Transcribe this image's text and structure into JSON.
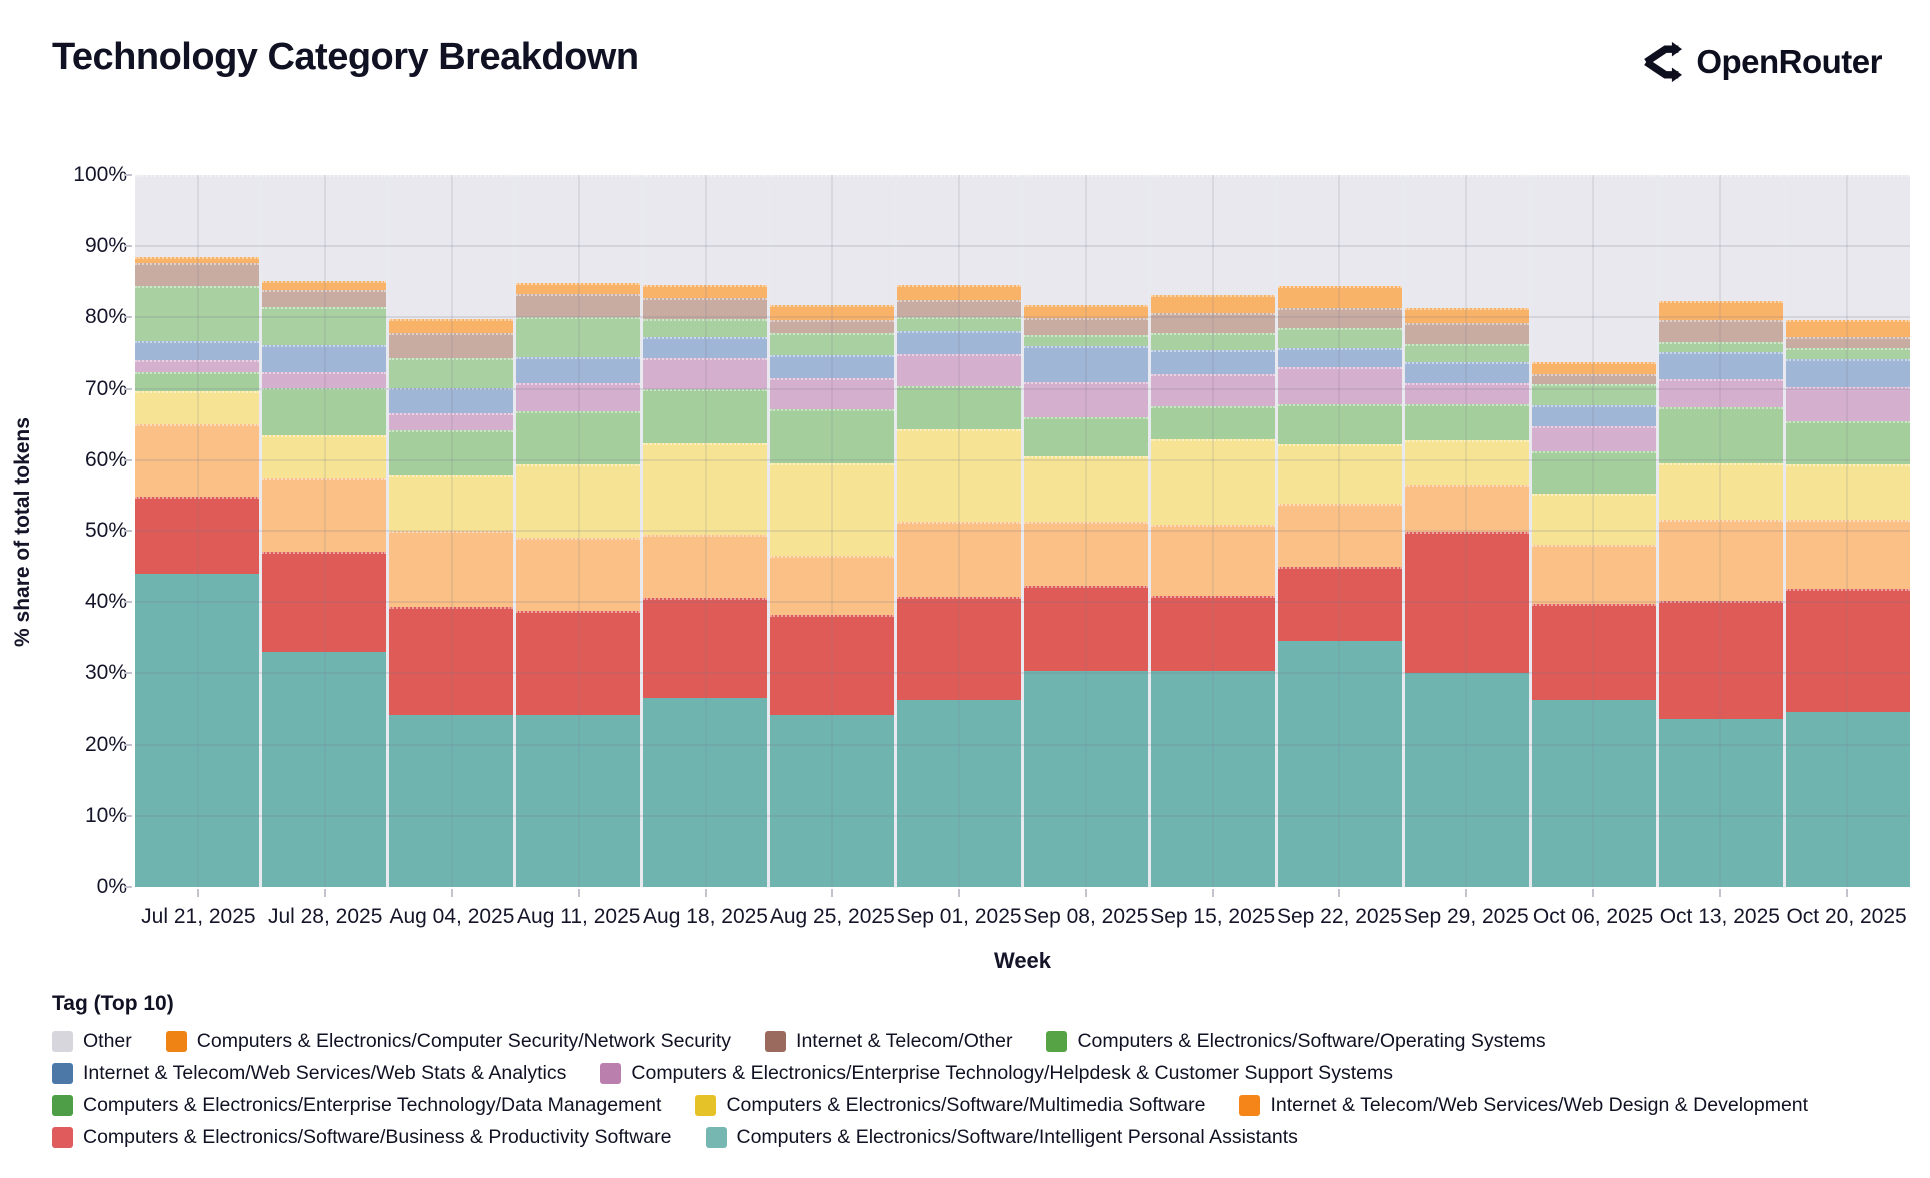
{
  "header": {
    "title": "Technology Category Breakdown",
    "brand": "OpenRouter"
  },
  "chart_data": {
    "type": "bar",
    "stacked": true,
    "normalized": "percent",
    "title": "Technology Category Breakdown",
    "xlabel": "Week",
    "ylabel": "% share of total tokens",
    "ylim": [
      0,
      100
    ],
    "yticks": [
      "0%",
      "10%",
      "20%",
      "30%",
      "40%",
      "50%",
      "60%",
      "70%",
      "80%",
      "90%",
      "100%"
    ],
    "grid": true,
    "legend_title": "Tag (Top 10)",
    "legend_position": "bottom",
    "plot_bg": "#E9E9F0",
    "categories": [
      "Jul 21, 2025",
      "Jul 28, 2025",
      "Aug 04, 2025",
      "Aug 11, 2025",
      "Aug 18, 2025",
      "Aug 25, 2025",
      "Sep 01, 2025",
      "Sep 08, 2025",
      "Sep 15, 2025",
      "Sep 22, 2025",
      "Sep 29, 2025",
      "Oct 06, 2025",
      "Oct 13, 2025",
      "Oct 20, 2025"
    ],
    "series": [
      {
        "name": "Other",
        "swatch": "#D6D6DC",
        "fill": "#E8E8EE",
        "pattern": false,
        "row": 1,
        "values": [
          11.5,
          14.9,
          20.2,
          15.2,
          15.5,
          18.3,
          15.5,
          18.2,
          16.8,
          15.6,
          18.6,
          26.3,
          17.7,
          20.4
        ]
      },
      {
        "name": "Computers & Electronics/Computer Security/Network Security",
        "swatch": "#EF8313",
        "fill": "#F9B369",
        "pattern": false,
        "row": 1,
        "values": [
          0.9,
          1.3,
          2.0,
          1.5,
          1.7,
          2.1,
          2.0,
          1.9,
          2.6,
          3.0,
          2.2,
          1.6,
          2.7,
          2.3
        ]
      },
      {
        "name": "Internet & Telecom/Other",
        "swatch": "#9B6A5E",
        "fill": "#C9ACA1",
        "pattern": true,
        "row": 1,
        "values": [
          3.2,
          2.3,
          3.5,
          3.2,
          3.0,
          1.8,
          2.5,
          2.3,
          2.8,
          2.9,
          2.9,
          1.5,
          3.1,
          1.6
        ]
      },
      {
        "name": "Computers & Electronics/Software/Operating Systems",
        "swatch": "#55A345",
        "fill": "#A9D0A0",
        "pattern": false,
        "row": 1,
        "values": [
          7.7,
          5.4,
          4.2,
          5.6,
          2.6,
          3.1,
          1.9,
          1.6,
          2.4,
          2.8,
          2.6,
          2.9,
          1.4,
          1.6
        ]
      },
      {
        "name": "Internet & Telecom/Web Services/Web Stats & Analytics",
        "swatch": "#4C78A8",
        "fill": "#9FB6D6",
        "pattern": false,
        "row": 2,
        "values": [
          2.7,
          3.8,
          3.5,
          3.7,
          2.9,
          3.2,
          3.2,
          5.0,
          3.4,
          2.6,
          2.9,
          2.9,
          3.8,
          3.8
        ]
      },
      {
        "name": "Computers & Electronics/Enterprise Technology/Helpdesk & Customer Support Systems",
        "swatch": "#BB7FAE",
        "fill": "#D5AFCE",
        "pattern": true,
        "row": 2,
        "values": [
          1.7,
          2.2,
          2.4,
          4.0,
          4.3,
          4.4,
          4.5,
          5.0,
          4.4,
          5.3,
          2.9,
          3.5,
          3.9,
          4.9
        ]
      },
      {
        "name": "Computers & Electronics/Enterprise Technology/Data Management",
        "swatch": "#4E9D47",
        "fill": "#A5CE9D",
        "pattern": false,
        "row": 3,
        "values": [
          2.7,
          6.6,
          6.3,
          7.4,
          7.6,
          7.6,
          6.1,
          5.4,
          4.7,
          5.6,
          5.1,
          6.1,
          7.9,
          6.0
        ]
      },
      {
        "name": "Computers & Electronics/Software/Multimedia Software",
        "swatch": "#E6C229",
        "fill": "#F6E494",
        "pattern": false,
        "row": 3,
        "values": [
          4.6,
          6.1,
          7.9,
          10.4,
          12.9,
          13.0,
          13.0,
          9.4,
          12.0,
          8.4,
          6.4,
          7.1,
          7.9,
          7.8
        ]
      },
      {
        "name": "Internet & Telecom/Web Services/Web Design & Development",
        "swatch": "#F58518",
        "fill": "#FAC086",
        "pattern": false,
        "row": 3,
        "values": [
          10.2,
          10.4,
          10.7,
          10.3,
          8.9,
          8.3,
          10.5,
          8.9,
          10.0,
          8.8,
          6.6,
          8.3,
          11.4,
          9.8
        ]
      },
      {
        "name": "Computers & Electronics/Software/Business & Productivity Software",
        "swatch": "#E05C5C",
        "fill": "#DF5B57",
        "pattern": false,
        "row": 4,
        "values": [
          10.8,
          14.0,
          15.1,
          14.5,
          14.0,
          14.0,
          14.5,
          12.0,
          10.6,
          10.4,
          19.8,
          13.5,
          16.6,
          17.2
        ]
      },
      {
        "name": "Computers & Electronics/Software/Intelligent Personal Assistants",
        "swatch": "#76B7B2",
        "fill": "#70B4B0",
        "pattern": false,
        "row": 4,
        "values": [
          44.0,
          33.0,
          24.2,
          24.2,
          26.6,
          24.2,
          26.3,
          30.3,
          30.3,
          34.6,
          30.0,
          26.3,
          23.6,
          24.6
        ]
      }
    ]
  }
}
